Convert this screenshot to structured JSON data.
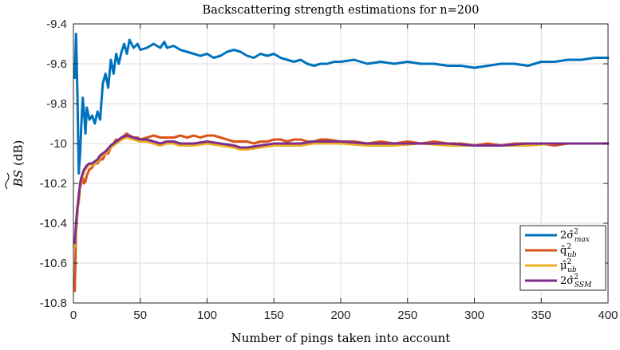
{
  "chart_data": {
    "type": "line",
    "title": "Backscattering strength estimations for n=200",
    "xlabel": "Number of pings taken into account",
    "ylabel": "BS (dB)",
    "xlim": [
      0,
      400
    ],
    "ylim": [
      -10.8,
      -9.4
    ],
    "x_ticks": [
      0,
      50,
      100,
      150,
      200,
      250,
      300,
      350,
      400
    ],
    "y_ticks": [
      -10.8,
      -10.6,
      -10.4,
      -10.2,
      -10,
      -9.8,
      -9.6,
      -9.4
    ],
    "x_tick_labels": [
      "0",
      "50",
      "100",
      "150",
      "200",
      "250",
      "300",
      "350",
      "400"
    ],
    "y_tick_labels": [
      "-10.8",
      "-10.6",
      "-10.4",
      "-10.2",
      "-10",
      "-9.8",
      "-9.6",
      "-9.4"
    ],
    "grid": true,
    "legend_position": "bottom-right",
    "series": [
      {
        "name": "2σ̂²max",
        "legend_main": "2σ̂",
        "legend_sup": "2",
        "legend_sub": "max",
        "color": "#0072BD",
        "x": [
          1,
          2,
          3,
          4,
          5,
          6,
          7,
          8,
          9,
          10,
          12,
          14,
          16,
          18,
          20,
          22,
          24,
          26,
          28,
          30,
          32,
          34,
          36,
          38,
          40,
          42,
          45,
          48,
          50,
          55,
          60,
          65,
          68,
          70,
          75,
          80,
          85,
          90,
          95,
          100,
          105,
          110,
          115,
          120,
          125,
          130,
          135,
          140,
          145,
          150,
          155,
          160,
          165,
          170,
          175,
          180,
          185,
          190,
          195,
          200,
          210,
          220,
          230,
          240,
          250,
          260,
          270,
          280,
          290,
          300,
          310,
          320,
          330,
          340,
          350,
          360,
          370,
          380,
          390,
          400
        ],
        "y": [
          -9.67,
          -9.45,
          -9.75,
          -10.15,
          -10.05,
          -9.9,
          -9.77,
          -9.85,
          -9.95,
          -9.82,
          -9.88,
          -9.86,
          -9.9,
          -9.84,
          -9.88,
          -9.7,
          -9.65,
          -9.72,
          -9.58,
          -9.65,
          -9.55,
          -9.6,
          -9.54,
          -9.5,
          -9.55,
          -9.48,
          -9.52,
          -9.5,
          -9.53,
          -9.52,
          -9.5,
          -9.52,
          -9.49,
          -9.52,
          -9.51,
          -9.53,
          -9.54,
          -9.55,
          -9.56,
          -9.55,
          -9.57,
          -9.56,
          -9.54,
          -9.53,
          -9.54,
          -9.56,
          -9.57,
          -9.55,
          -9.56,
          -9.55,
          -9.57,
          -9.58,
          -9.59,
          -9.58,
          -9.6,
          -9.61,
          -9.6,
          -9.6,
          -9.59,
          -9.59,
          -9.58,
          -9.6,
          -9.59,
          -9.6,
          -9.59,
          -9.6,
          -9.6,
          -9.61,
          -9.61,
          -9.62,
          -9.61,
          -9.6,
          -9.6,
          -9.61,
          -9.59,
          -9.59,
          -9.58,
          -9.58,
          -9.57,
          -9.57
        ]
      },
      {
        "name": "q̂²ub",
        "legend_main": "q̂",
        "legend_sup": "2",
        "legend_sub": "ub",
        "color": "#D95319",
        "x": [
          1,
          2,
          3,
          4,
          5,
          6,
          7,
          8,
          9,
          10,
          12,
          14,
          16,
          18,
          20,
          22,
          24,
          26,
          28,
          30,
          32,
          34,
          36,
          38,
          40,
          42,
          45,
          48,
          50,
          55,
          60,
          65,
          70,
          75,
          80,
          85,
          90,
          95,
          100,
          105,
          110,
          115,
          120,
          125,
          130,
          135,
          140,
          145,
          150,
          155,
          160,
          165,
          170,
          175,
          180,
          185,
          190,
          200,
          210,
          220,
          230,
          240,
          250,
          260,
          270,
          280,
          290,
          300,
          310,
          320,
          330,
          340,
          350,
          360,
          370,
          380,
          390,
          400
        ],
        "y": [
          -10.74,
          -10.45,
          -10.35,
          -10.25,
          -10.22,
          -10.2,
          -10.17,
          -10.2,
          -10.19,
          -10.16,
          -10.13,
          -10.12,
          -10.1,
          -10.1,
          -10.08,
          -10.08,
          -10.05,
          -10.05,
          -10.02,
          -10.0,
          -9.98,
          -9.99,
          -9.97,
          -9.96,
          -9.95,
          -9.96,
          -9.97,
          -9.97,
          -9.98,
          -9.97,
          -9.96,
          -9.97,
          -9.97,
          -9.97,
          -9.96,
          -9.97,
          -9.96,
          -9.97,
          -9.96,
          -9.96,
          -9.97,
          -9.98,
          -9.99,
          -9.99,
          -9.99,
          -10.0,
          -9.99,
          -9.99,
          -9.98,
          -9.98,
          -9.99,
          -9.98,
          -9.98,
          -9.99,
          -9.99,
          -9.98,
          -9.98,
          -9.99,
          -9.99,
          -10.0,
          -9.99,
          -10.0,
          -9.99,
          -10.0,
          -9.99,
          -10.0,
          -10.0,
          -10.01,
          -10.0,
          -10.01,
          -10.0,
          -10.0,
          -10.0,
          -10.01,
          -10.0,
          -10.0,
          -10.0,
          -10.0
        ]
      },
      {
        "name": "μ̂²ub",
        "legend_main": "μ̂",
        "legend_sup": "2",
        "legend_sub": "ub",
        "color": "#EDB120",
        "x": [
          1,
          2,
          3,
          4,
          5,
          6,
          8,
          10,
          12,
          14,
          16,
          18,
          20,
          24,
          28,
          32,
          36,
          40,
          45,
          50,
          55,
          60,
          65,
          70,
          75,
          80,
          90,
          100,
          110,
          120,
          125,
          130,
          140,
          150,
          160,
          170,
          180,
          190,
          200,
          220,
          240,
          260,
          280,
          300,
          320,
          340,
          360,
          380,
          400
        ],
        "y": [
          -10.52,
          -10.45,
          -10.33,
          -10.3,
          -10.22,
          -10.18,
          -10.14,
          -10.12,
          -10.1,
          -10.11,
          -10.1,
          -10.09,
          -10.07,
          -10.05,
          -10.02,
          -10.0,
          -9.98,
          -9.97,
          -9.98,
          -9.99,
          -9.99,
          -10.0,
          -10.01,
          -10.0,
          -10.0,
          -10.01,
          -10.01,
          -10.0,
          -10.01,
          -10.02,
          -10.03,
          -10.03,
          -10.02,
          -10.01,
          -10.01,
          -10.01,
          -10.0,
          -10.0,
          -10.0,
          -10.01,
          -10.01,
          -10.0,
          -10.01,
          -10.01,
          -10.01,
          -10.01,
          -10.0,
          -10.0,
          -10.0
        ]
      },
      {
        "name": "2σ̂²SSM",
        "legend_main": "2σ̂",
        "legend_sup": "2",
        "legend_sub": "SSM",
        "color": "#7E2F8E",
        "x": [
          1,
          2,
          3,
          4,
          5,
          6,
          8,
          10,
          12,
          14,
          16,
          18,
          20,
          24,
          28,
          32,
          36,
          40,
          45,
          50,
          55,
          60,
          65,
          70,
          75,
          80,
          90,
          100,
          110,
          120,
          125,
          130,
          140,
          150,
          160,
          170,
          180,
          190,
          200,
          220,
          240,
          260,
          280,
          300,
          320,
          340,
          360,
          380,
          400
        ],
        "y": [
          -10.5,
          -10.4,
          -10.32,
          -10.27,
          -10.2,
          -10.17,
          -10.13,
          -10.11,
          -10.1,
          -10.1,
          -10.09,
          -10.08,
          -10.06,
          -10.04,
          -10.01,
          -9.99,
          -9.97,
          -9.96,
          -9.97,
          -9.98,
          -9.98,
          -9.99,
          -10.0,
          -9.99,
          -9.99,
          -10.0,
          -10.0,
          -9.99,
          -10.0,
          -10.01,
          -10.02,
          -10.02,
          -10.01,
          -10.0,
          -10.0,
          -10.0,
          -9.99,
          -9.99,
          -9.99,
          -10.0,
          -10.0,
          -10.0,
          -10.0,
          -10.01,
          -10.01,
          -10.0,
          -10.0,
          -10.0,
          -10.0
        ]
      }
    ]
  }
}
